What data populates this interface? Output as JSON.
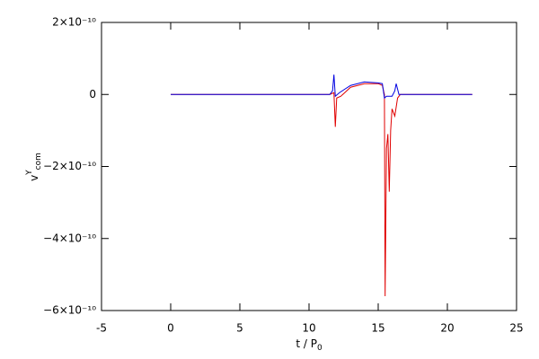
{
  "chart_data": {
    "type": "line",
    "xlabel": {
      "base": "t / P",
      "sub": "0"
    },
    "ylabel": {
      "base": "v",
      "sup": "Y",
      "sub": "com"
    },
    "xlim": [
      -5,
      25
    ],
    "xticks": [
      -5,
      0,
      5,
      10,
      15,
      20,
      25
    ],
    "ylim": [
      -6e-10,
      2e-10
    ],
    "yticks": [
      {
        "value": -6e-10,
        "label": "−6×10⁻¹⁰"
      },
      {
        "value": -4e-10,
        "label": "−4×10⁻¹⁰"
      },
      {
        "value": -2e-10,
        "label": "−2×10⁻¹⁰"
      },
      0,
      {
        "value": 2e-10,
        "label": "2×10⁻¹⁰"
      }
    ],
    "series": [
      {
        "color": "#e00000",
        "x": [
          0,
          11.5,
          11.8,
          11.9,
          12.0,
          12.3,
          13,
          14,
          15,
          15.3,
          15.45,
          15.5,
          15.6,
          15.7,
          15.8,
          15.9,
          16.0,
          16.2,
          16.4,
          16.6,
          21.8
        ],
        "values": [
          0,
          0,
          5e-12,
          -9e-11,
          -1e-11,
          -5e-12,
          2e-11,
          3e-11,
          3e-11,
          2.5e-11,
          0,
          -5.6e-10,
          -1.5e-10,
          -1.1e-10,
          -2.7e-10,
          -1e-10,
          -4e-11,
          -6e-11,
          -1e-11,
          0,
          0
        ]
      },
      {
        "color": "#0000e0",
        "x": [
          0,
          11.5,
          11.7,
          11.8,
          11.9,
          12.2,
          13,
          14,
          15,
          15.3,
          15.45,
          15.6,
          16.0,
          16.2,
          16.3,
          16.5,
          21.8
        ],
        "values": [
          0,
          0,
          1e-11,
          5.5e-11,
          -5e-12,
          5e-12,
          2.5e-11,
          3.5e-11,
          3.2e-11,
          3e-11,
          -1e-11,
          -5e-12,
          -5e-12,
          1e-11,
          3e-11,
          0,
          0
        ]
      }
    ]
  }
}
